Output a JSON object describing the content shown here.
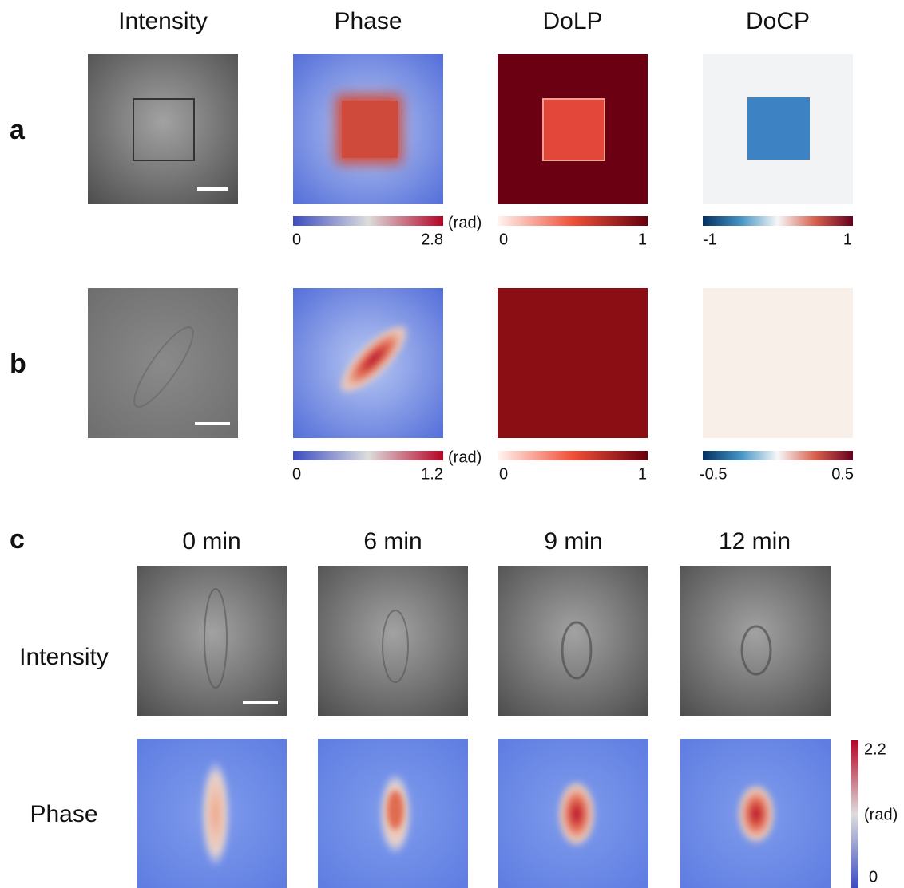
{
  "columns": [
    "Intensity",
    "Phase",
    "DoLP",
    "DoCP"
  ],
  "rows": [
    {
      "label": "a",
      "colorbars": [
        {
          "min": "0",
          "max": "2.8",
          "unit": "(rad)"
        },
        {
          "min": "0",
          "max": "1"
        },
        {
          "min": "-1",
          "max": "1"
        }
      ]
    },
    {
      "label": "b",
      "colorbars": [
        {
          "min": "0",
          "max": "1.2",
          "unit": "(rad)"
        },
        {
          "min": "0",
          "max": "1"
        },
        {
          "min": "-0.5",
          "max": "0.5"
        }
      ]
    }
  ],
  "timelapse": {
    "label": "c",
    "times": [
      "0 min",
      "6 min",
      "9 min",
      "12 min"
    ],
    "rows": [
      "Intensity",
      "Phase"
    ],
    "colorbar": {
      "max": "2.2",
      "unit": "(rad)",
      "min": "0"
    }
  }
}
